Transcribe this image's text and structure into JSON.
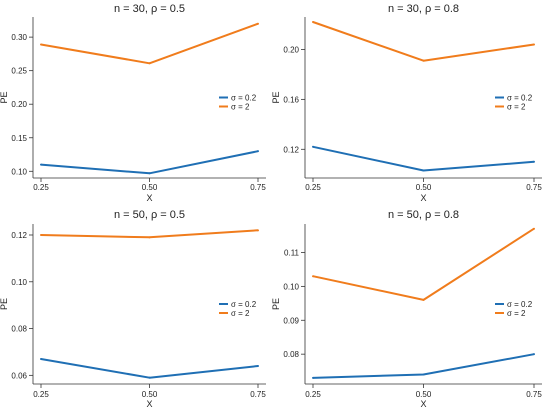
{
  "colors": {
    "sigma_02": "#1f6fb4",
    "sigma_2": "#f07c1c"
  },
  "chart_data": [
    {
      "type": "line",
      "title": "n = 30, ρ = 0.5",
      "xlabel": "X",
      "ylabel": "PE",
      "x": [
        0.25,
        0.5,
        0.75
      ],
      "x_tick_labels": [
        "0.25",
        "0.50",
        "0.75"
      ],
      "ylim": [
        0.09,
        0.33
      ],
      "y_ticks": [
        0.1,
        0.15,
        0.2,
        0.25,
        0.3
      ],
      "y_tick_labels": [
        "0.10",
        "0.15",
        "0.20",
        "0.25",
        "0.30"
      ],
      "legend_position": "right",
      "series": [
        {
          "name": "σ = 0.2",
          "color": "#1f6fb4",
          "values": [
            0.11,
            0.097,
            0.13
          ]
        },
        {
          "name": "σ = 2",
          "color": "#f07c1c",
          "values": [
            0.289,
            0.261,
            0.32
          ]
        }
      ]
    },
    {
      "type": "line",
      "title": "n = 30, ρ = 0.8",
      "xlabel": "X",
      "ylabel": "PE",
      "x": [
        0.25,
        0.5,
        0.75
      ],
      "x_tick_labels": [
        "0.25",
        "0.50",
        "0.75"
      ],
      "ylim": [
        0.097,
        0.226
      ],
      "y_ticks": [
        0.12,
        0.16,
        0.2
      ],
      "y_tick_labels": [
        "0.12",
        "0.16",
        "0.20"
      ],
      "legend_position": "right",
      "series": [
        {
          "name": "σ = 0.2",
          "color": "#1f6fb4",
          "values": [
            0.122,
            0.103,
            0.11
          ]
        },
        {
          "name": "σ = 2",
          "color": "#f07c1c",
          "values": [
            0.222,
            0.191,
            0.204
          ]
        }
      ]
    },
    {
      "type": "line",
      "title": "n = 50, ρ = 0.5",
      "xlabel": "X",
      "ylabel": "PE",
      "x": [
        0.25,
        0.5,
        0.75
      ],
      "x_tick_labels": [
        "0.25",
        "0.50",
        "0.75"
      ],
      "ylim": [
        0.0563,
        0.1247
      ],
      "y_ticks": [
        0.06,
        0.08,
        0.1,
        0.12
      ],
      "y_tick_labels": [
        "0.06",
        "0.08",
        "0.10",
        "0.12"
      ],
      "legend_position": "right",
      "series": [
        {
          "name": "σ = 0.2",
          "color": "#1f6fb4",
          "values": [
            0.067,
            0.059,
            0.064
          ]
        },
        {
          "name": "σ = 2",
          "color": "#f07c1c",
          "values": [
            0.12,
            0.119,
            0.122
          ]
        }
      ]
    },
    {
      "type": "line",
      "title": "n = 50, ρ = 0.8",
      "xlabel": "X",
      "ylabel": "PE",
      "x": [
        0.25,
        0.5,
        0.75
      ],
      "x_tick_labels": [
        "0.25",
        "0.50",
        "0.75"
      ],
      "ylim": [
        0.0712,
        0.1184
      ],
      "y_ticks": [
        0.08,
        0.09,
        0.1,
        0.11
      ],
      "y_tick_labels": [
        "0.08",
        "0.09",
        "0.10",
        "0.11"
      ],
      "legend_position": "right",
      "series": [
        {
          "name": "σ = 0.2",
          "color": "#1f6fb4",
          "values": [
            0.073,
            0.074,
            0.08
          ]
        },
        {
          "name": "σ = 2",
          "color": "#f07c1c",
          "values": [
            0.103,
            0.096,
            0.117
          ]
        }
      ]
    }
  ]
}
